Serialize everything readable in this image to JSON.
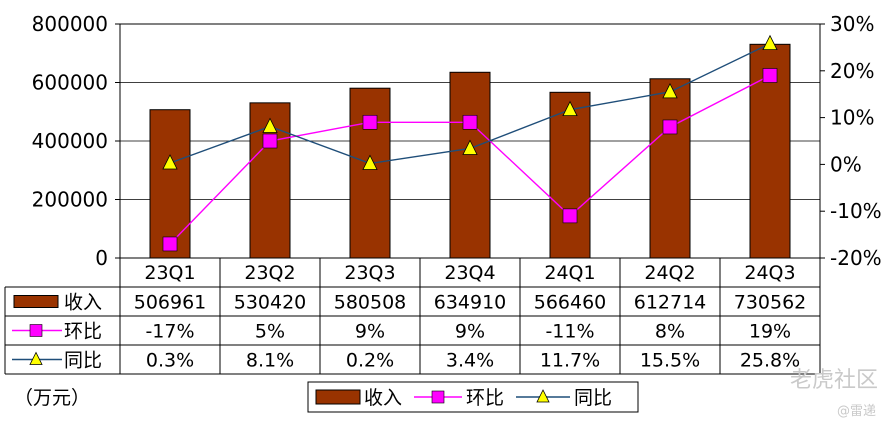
{
  "chart_data": {
    "type": "bar",
    "categories": [
      "23Q1",
      "23Q2",
      "23Q3",
      "23Q4",
      "24Q1",
      "24Q2",
      "24Q3"
    ],
    "series": [
      {
        "name": "收入",
        "kind": "bar",
        "axis": "left",
        "values": [
          506961,
          530420,
          580508,
          634910,
          566460,
          612714,
          730562
        ]
      },
      {
        "name": "环比",
        "kind": "line",
        "axis": "right",
        "values": [
          -17,
          5,
          9,
          9,
          -11,
          8,
          19
        ]
      },
      {
        "name": "同比",
        "kind": "line",
        "axis": "right",
        "values": [
          0.3,
          8.1,
          0.2,
          3.4,
          11.7,
          15.5,
          25.8
        ]
      }
    ],
    "table_rows": [
      [
        "506961",
        "530420",
        "580508",
        "634910",
        "566460",
        "612714",
        "730562"
      ],
      [
        "-17%",
        "5%",
        "9%",
        "9%",
        "-11%",
        "8%",
        "19%"
      ],
      [
        "0.3%",
        "8.1%",
        "0.2%",
        "3.4%",
        "11.7%",
        "15.5%",
        "25.8%"
      ]
    ],
    "y_left": {
      "ticks": [
        "0",
        "200000",
        "400000",
        "600000",
        "800000"
      ],
      "range": [
        0,
        800000
      ]
    },
    "y_right": {
      "ticks": [
        "-20%",
        "-10%",
        "0%",
        "10%",
        "20%",
        "30%"
      ],
      "range": [
        -20,
        30
      ]
    },
    "unit_label": "（万元）",
    "legend": {
      "position": "bottom-center"
    },
    "grid": true,
    "colors": {
      "bar": "#993300",
      "ring": "#FF00FF",
      "yoy": "#FFFF00",
      "yoy_line": "#1F4E79"
    }
  },
  "watermark": {
    "main": "老虎社区",
    "sub": "@雷递"
  }
}
